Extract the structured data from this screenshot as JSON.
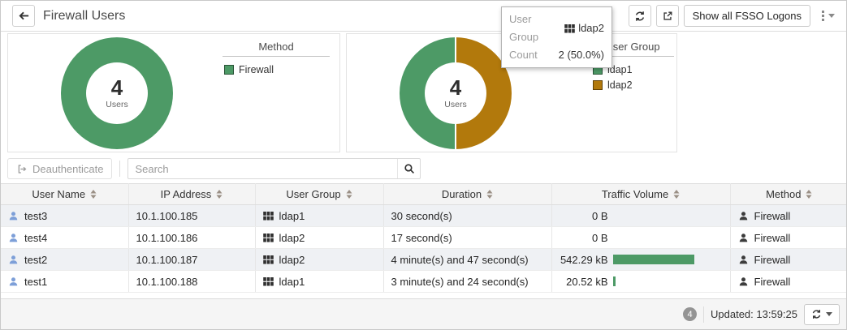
{
  "header": {
    "title": "Firewall Users",
    "fsso_button": "Show all FSSO Logons"
  },
  "tooltip": {
    "row1_label": "User Group",
    "row1_value": "ldap2",
    "row2_label": "Count",
    "row2_value": "2 (50.0%)"
  },
  "charts": {
    "method": {
      "center_value": "4",
      "center_label": "Users",
      "legend_title": "Method",
      "items": [
        {
          "label": "Firewall",
          "value": 4,
          "color": "#4d9a66"
        }
      ]
    },
    "user_group": {
      "center_value": "4",
      "center_label": "Users",
      "legend_title": "User Group",
      "items": [
        {
          "label": "ldap1",
          "value": 2,
          "color": "#4d9a66"
        },
        {
          "label": "ldap2",
          "value": 2,
          "color": "#b2790c"
        }
      ]
    }
  },
  "chart_data": [
    {
      "type": "pie",
      "title": "Method",
      "labels": [
        "Firewall"
      ],
      "values": [
        4
      ],
      "colors": [
        "#4d9a66"
      ],
      "center_text": "4 Users",
      "legend_position": "right"
    },
    {
      "type": "pie",
      "title": "User Group",
      "labels": [
        "ldap1",
        "ldap2"
      ],
      "values": [
        2,
        2
      ],
      "colors": [
        "#4d9a66",
        "#b2790c"
      ],
      "center_text": "4 Users",
      "legend_position": "right"
    }
  ],
  "toolbar": {
    "deauthenticate": "Deauthenticate",
    "search_placeholder": "Search"
  },
  "table": {
    "columns": [
      "User Name",
      "IP Address",
      "User Group",
      "Duration",
      "Traffic Volume",
      "Method"
    ],
    "rows": [
      {
        "user_name": "test3",
        "ip": "10.1.100.185",
        "group": "ldap1",
        "duration": "30 second(s)",
        "traffic": "0 B",
        "traffic_pct": 0,
        "method": "Firewall"
      },
      {
        "user_name": "test4",
        "ip": "10.1.100.186",
        "group": "ldap2",
        "duration": "17 second(s)",
        "traffic": "0 B",
        "traffic_pct": 0,
        "method": "Firewall"
      },
      {
        "user_name": "test2",
        "ip": "10.1.100.187",
        "group": "ldap2",
        "duration": "4 minute(s) and 47 second(s)",
        "traffic": "542.29 kB",
        "traffic_pct": 100,
        "method": "Firewall"
      },
      {
        "user_name": "test1",
        "ip": "10.1.100.188",
        "group": "ldap1",
        "duration": "3 minute(s) and 24 second(s)",
        "traffic": "20.52 kB",
        "traffic_pct": 3.8,
        "method": "Firewall"
      }
    ]
  },
  "footer": {
    "count_badge": "4",
    "updated_label": "Updated: 13:59:25"
  },
  "colors": {
    "chart_green": "#4d9a66",
    "chart_gold": "#b2790c",
    "traffic_bar": "#4d9a66",
    "user_icon_blue": "#7d9fd8"
  }
}
